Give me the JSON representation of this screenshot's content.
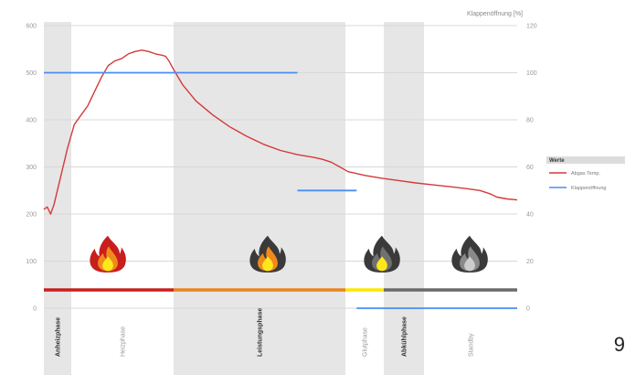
{
  "page_number": "9",
  "chart_data": {
    "type": "line",
    "ylabel_right": "Klappenöffnung [%]",
    "y_left": {
      "min": 0,
      "max": 600,
      "ticks": [
        "0",
        "100",
        "200",
        "300",
        "400",
        "500",
        "600"
      ]
    },
    "y_right": {
      "min": 0,
      "max": 120,
      "ticks": [
        "0",
        "20",
        "40",
        "60",
        "80",
        "100",
        "120"
      ]
    },
    "grid": true,
    "legend": {
      "position": "right",
      "title": "Werte",
      "entries": [
        {
          "label": "Abgas Temp.",
          "color": "#d43a3a"
        },
        {
          "label": "Klappenöffnung",
          "color": "#4a8ef0"
        }
      ]
    },
    "phases": [
      {
        "label": "Anheizphase",
        "bold": true,
        "shaded": true
      },
      {
        "label": "Heizphase",
        "bold": false,
        "shaded": false
      },
      {
        "label": "Leistungsphase",
        "bold": true,
        "shaded": true
      },
      {
        "label": "Glutphase",
        "bold": false,
        "shaded": false
      },
      {
        "label": "Abkühlphase",
        "bold": true,
        "shaded": true
      },
      {
        "label": "Standby",
        "bold": false,
        "shaded": false
      }
    ],
    "phase_colors": [
      "#c81e1e",
      "#c81e1e",
      "#e8841a",
      "#ffe600",
      "#6a6a6a",
      "#6a6a6a"
    ],
    "flame_icons": [
      "fire-red-icon",
      "fire-gray-orange-icon",
      "fire-gray-yellow-icon",
      "fire-gray-icon"
    ],
    "series": [
      {
        "name": "Abgas Temp.",
        "color": "#d43a3a",
        "axis": "left",
        "points": [
          [
            0,
            210
          ],
          [
            2,
            215
          ],
          [
            4,
            200
          ],
          [
            6,
            220
          ],
          [
            10,
            280
          ],
          [
            14,
            340
          ],
          [
            18,
            390
          ],
          [
            22,
            410
          ],
          [
            26,
            430
          ],
          [
            30,
            460
          ],
          [
            34,
            490
          ],
          [
            38,
            515
          ],
          [
            42,
            525
          ],
          [
            46,
            530
          ],
          [
            50,
            540
          ],
          [
            54,
            545
          ],
          [
            58,
            548
          ],
          [
            62,
            545
          ],
          [
            66,
            540
          ],
          [
            70,
            537
          ],
          [
            72,
            535
          ],
          [
            74,
            525
          ],
          [
            77,
            505
          ],
          [
            82,
            475
          ],
          [
            90,
            440
          ],
          [
            100,
            410
          ],
          [
            110,
            385
          ],
          [
            120,
            365
          ],
          [
            130,
            348
          ],
          [
            140,
            335
          ],
          [
            150,
            326
          ],
          [
            160,
            320
          ],
          [
            165,
            316
          ],
          [
            170,
            310
          ],
          [
            175,
            300
          ],
          [
            180,
            290
          ],
          [
            190,
            282
          ],
          [
            200,
            276
          ],
          [
            210,
            271
          ],
          [
            220,
            266
          ],
          [
            230,
            262
          ],
          [
            240,
            258
          ],
          [
            250,
            254
          ],
          [
            258,
            250
          ],
          [
            264,
            243
          ],
          [
            268,
            236
          ],
          [
            274,
            232
          ],
          [
            280,
            230
          ]
        ]
      },
      {
        "name": "Klappenöffnung",
        "color": "#4a8ef0",
        "axis": "right",
        "segments": [
          [
            [
              0,
              100
            ],
            [
              150,
              100
            ]
          ],
          [
            [
              150,
              50
            ],
            [
              185,
              50
            ]
          ],
          [
            [
              185,
              0
            ],
            [
              280,
              0
            ]
          ]
        ]
      }
    ]
  }
}
